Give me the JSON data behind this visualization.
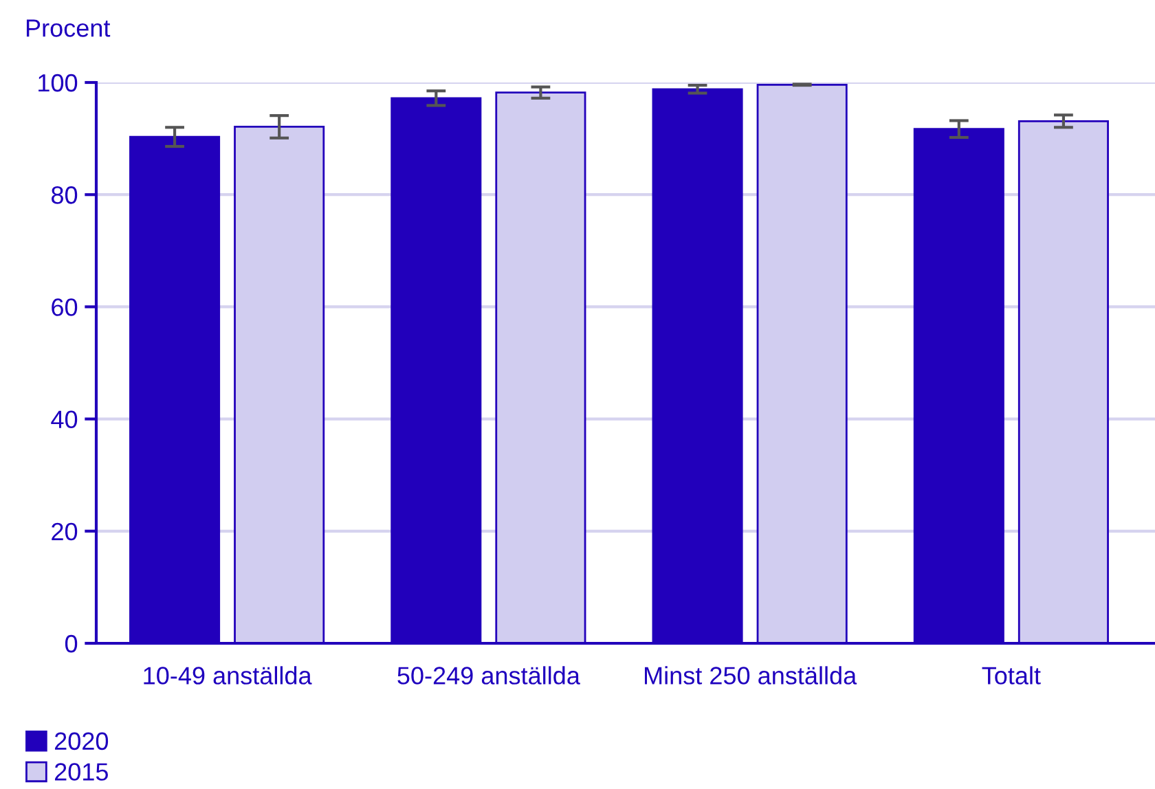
{
  "chart_data": {
    "type": "bar",
    "ylabel": "Procent",
    "categories": [
      "10-49 anställda",
      "50-249 anställda",
      "Minst 250 anställda",
      "Totalt"
    ],
    "series": [
      {
        "name": "2020",
        "color": "#2200bb",
        "values": [
          90.3,
          97.2,
          98.8,
          91.7
        ],
        "errors": [
          1.7,
          1.3,
          0.7,
          1.5
        ]
      },
      {
        "name": "2015",
        "color": "#d1cdf0",
        "values": [
          92.1,
          98.2,
          99.6,
          93.1
        ],
        "errors": [
          2.0,
          1.0,
          0.1,
          1.1
        ]
      }
    ],
    "ylim": [
      0,
      100
    ],
    "yticks": [
      0,
      20,
      40,
      60,
      80,
      100
    ],
    "grid": "y",
    "legend": "bottom left"
  }
}
